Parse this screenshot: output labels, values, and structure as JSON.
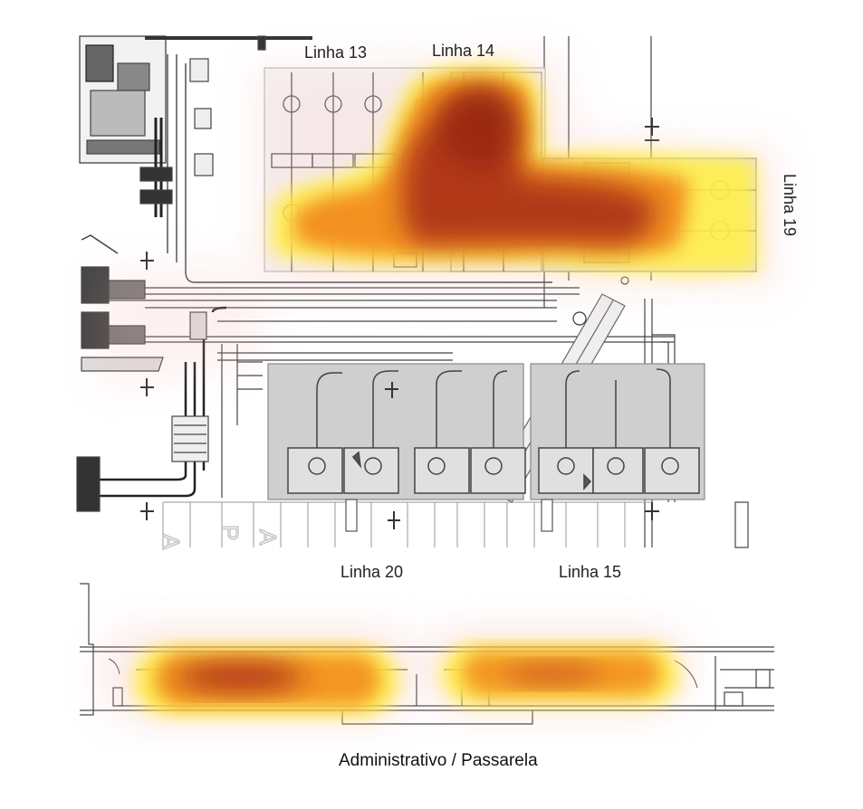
{
  "labels": {
    "linha13": "Linha 13",
    "linha14": "Linha 14",
    "linha19": "Linha 19",
    "linha20": "Linha 20",
    "linha15": "Linha 15"
  },
  "caption": "Administrativo / Passarela",
  "colors": {
    "heat_low": "#ffef4a",
    "heat_mid": "#f28a1e",
    "heat_high": "#9c1f14",
    "plan_line": "#555555",
    "zone_fill": "#cfcfcf"
  }
}
